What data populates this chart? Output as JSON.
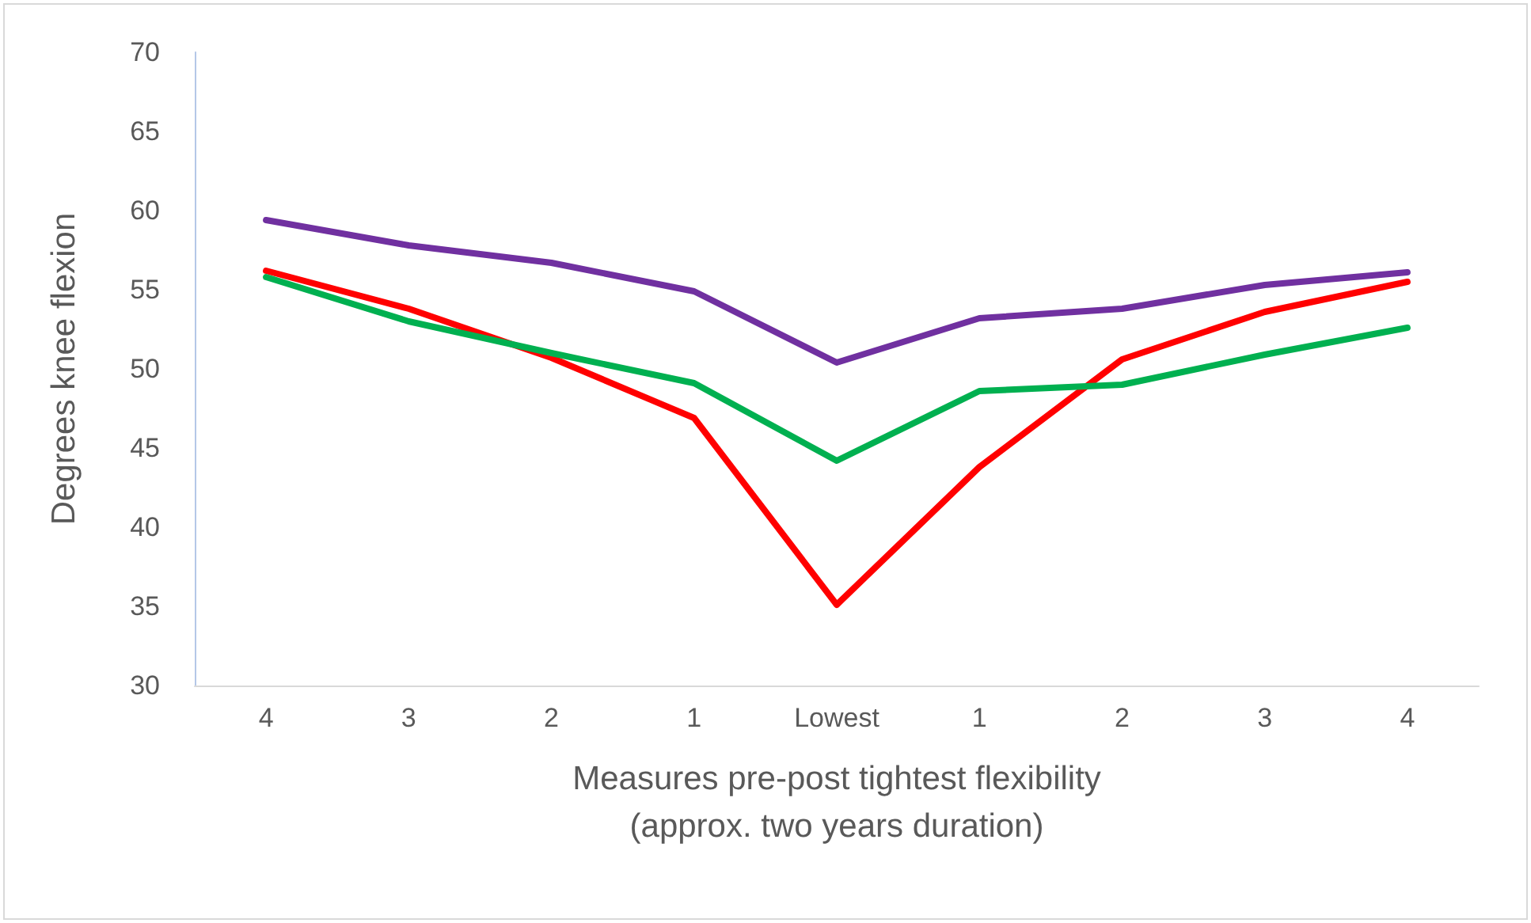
{
  "chart_data": {
    "type": "line",
    "xlabel": "Measures pre-post tightest flexibility\n(approx. two years duration)",
    "ylabel": "Degrees knee flexion",
    "categories": [
      "4",
      "3",
      "2",
      "1",
      "Lowest",
      "1",
      "2",
      "3",
      "4"
    ],
    "series": [
      {
        "color": "#7030a0",
        "values": [
          59.4,
          57.8,
          56.7,
          54.9,
          50.4,
          53.2,
          53.8,
          55.3,
          56.1
        ]
      },
      {
        "color": "#ff0000",
        "values": [
          56.2,
          53.8,
          50.7,
          46.9,
          35.1,
          43.8,
          50.6,
          53.6,
          55.5
        ]
      },
      {
        "color": "#00b050",
        "values": [
          55.8,
          53.0,
          51.0,
          49.1,
          44.2,
          48.6,
          49.0,
          50.9,
          52.6
        ]
      }
    ],
    "ylim": [
      30,
      70
    ],
    "yticks": [
      30,
      35,
      40,
      45,
      50,
      55,
      60,
      65,
      70
    ],
    "grid": false,
    "marker": "none",
    "line_style": "solid"
  }
}
